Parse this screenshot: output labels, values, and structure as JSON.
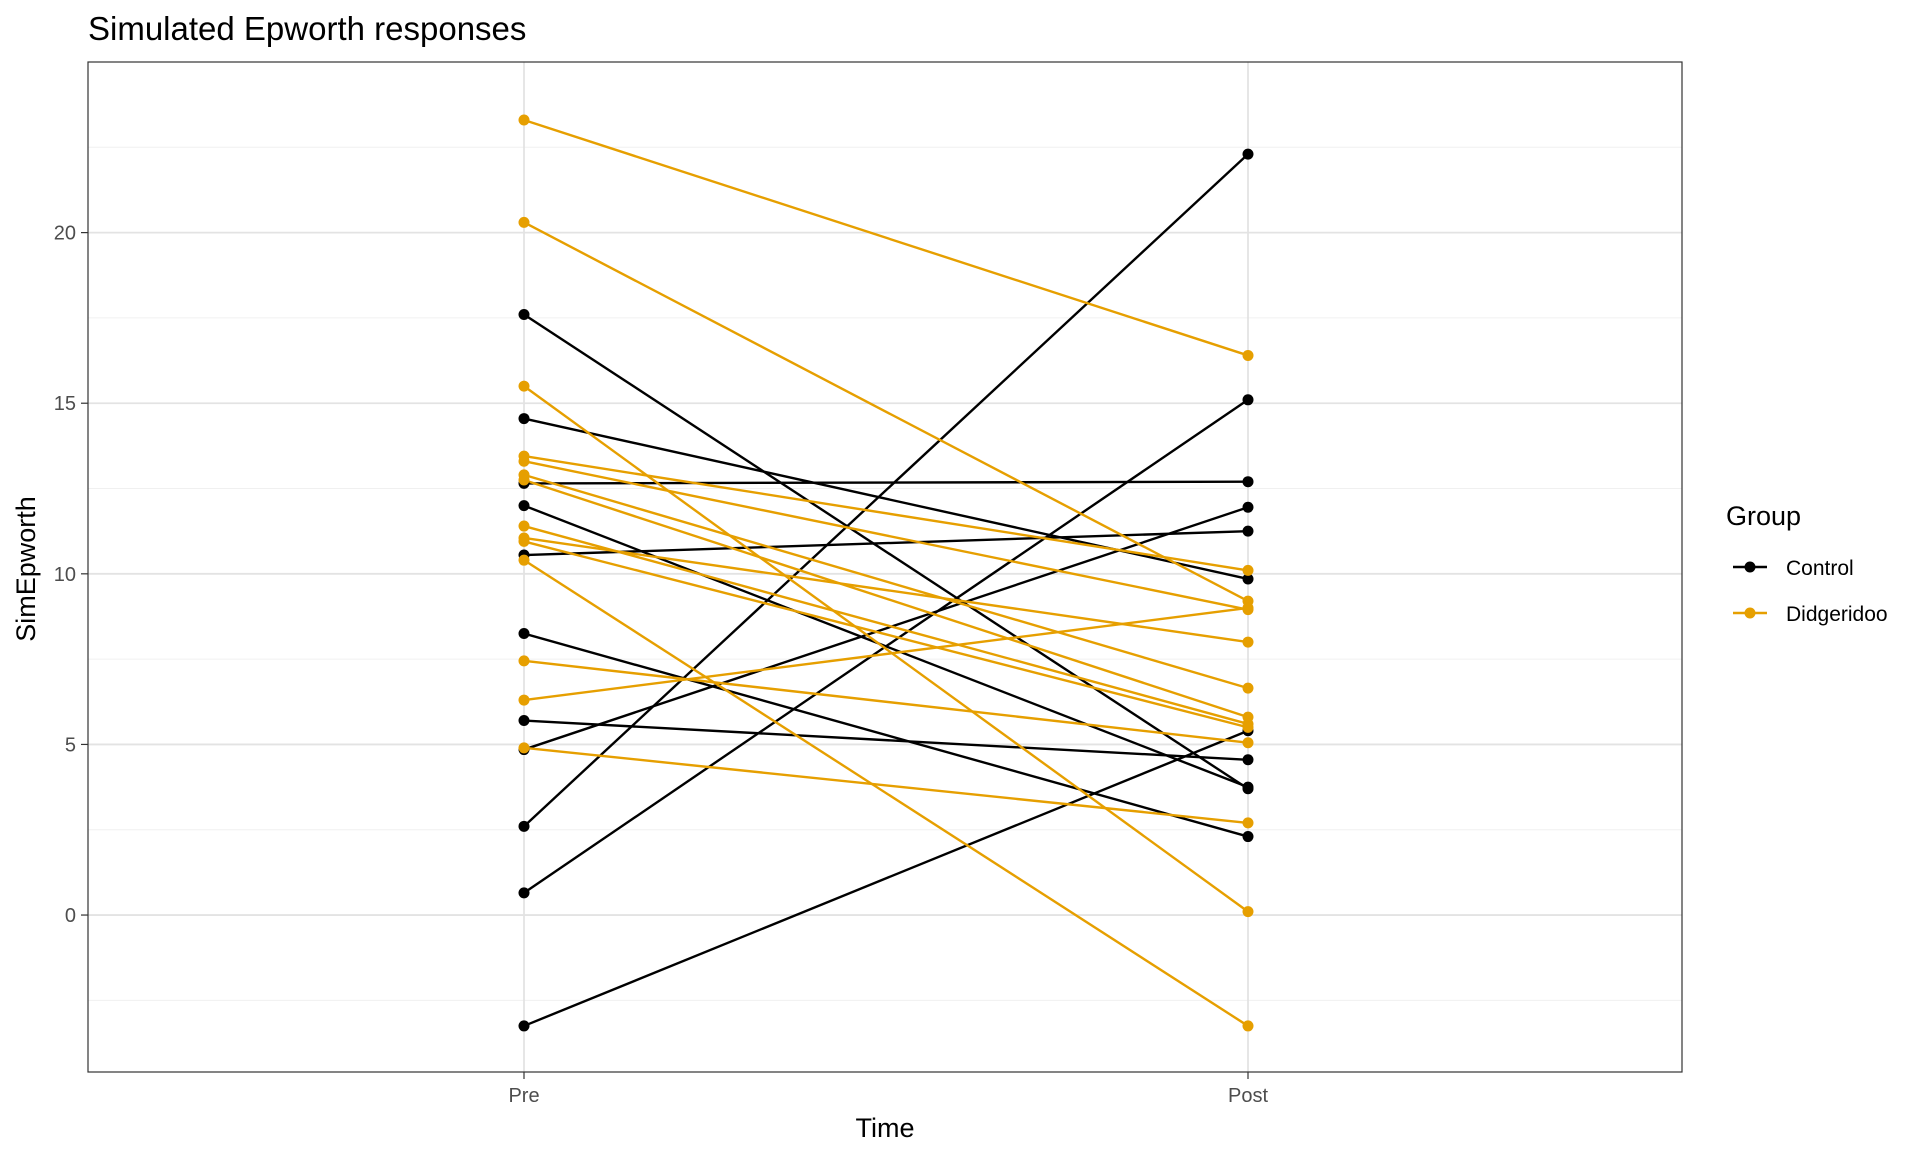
{
  "chart_data": {
    "type": "line",
    "title": "Simulated Epworth responses",
    "xlabel": "Time",
    "ylabel": "SimEpworth",
    "categories": [
      "Pre",
      "Post"
    ],
    "ylim": [
      -4.6,
      25.0
    ],
    "yticks": [
      0,
      5,
      10,
      15,
      20
    ],
    "grid": true,
    "legend": {
      "title": "Group",
      "position": "right",
      "entries": [
        {
          "name": "Control",
          "color": "#000000"
        },
        {
          "name": "Didgeridoo",
          "color": "#E69F00"
        }
      ]
    },
    "series": [
      {
        "group": "Control",
        "values": [
          17.6,
          3.7
        ]
      },
      {
        "group": "Control",
        "values": [
          14.55,
          9.85
        ]
      },
      {
        "group": "Control",
        "values": [
          12.65,
          12.7
        ]
      },
      {
        "group": "Control",
        "values": [
          12.0,
          3.75
        ]
      },
      {
        "group": "Control",
        "values": [
          10.55,
          11.25
        ]
      },
      {
        "group": "Control",
        "values": [
          8.25,
          2.3
        ]
      },
      {
        "group": "Control",
        "values": [
          5.7,
          4.55
        ]
      },
      {
        "group": "Control",
        "values": [
          4.85,
          11.95
        ]
      },
      {
        "group": "Control",
        "values": [
          2.6,
          22.3
        ]
      },
      {
        "group": "Control",
        "values": [
          0.65,
          15.1
        ]
      },
      {
        "group": "Control",
        "values": [
          -3.25,
          5.4
        ]
      },
      {
        "group": "Didgeridoo",
        "values": [
          23.3,
          16.4
        ]
      },
      {
        "group": "Didgeridoo",
        "values": [
          20.3,
          9.2
        ]
      },
      {
        "group": "Didgeridoo",
        "values": [
          15.5,
          0.1
        ]
      },
      {
        "group": "Didgeridoo",
        "values": [
          13.45,
          10.1
        ]
      },
      {
        "group": "Didgeridoo",
        "values": [
          13.3,
          8.95
        ]
      },
      {
        "group": "Didgeridoo",
        "values": [
          12.9,
          6.65
        ]
      },
      {
        "group": "Didgeridoo",
        "values": [
          12.75,
          5.8
        ]
      },
      {
        "group": "Didgeridoo",
        "values": [
          11.4,
          5.6
        ]
      },
      {
        "group": "Didgeridoo",
        "values": [
          11.05,
          8.0
        ]
      },
      {
        "group": "Didgeridoo",
        "values": [
          10.95,
          5.5
        ]
      },
      {
        "group": "Didgeridoo",
        "values": [
          10.4,
          -3.25
        ]
      },
      {
        "group": "Didgeridoo",
        "values": [
          7.45,
          5.05
        ]
      },
      {
        "group": "Didgeridoo",
        "values": [
          6.3,
          9.0
        ]
      },
      {
        "group": "Didgeridoo",
        "values": [
          4.9,
          2.7
        ]
      }
    ]
  }
}
